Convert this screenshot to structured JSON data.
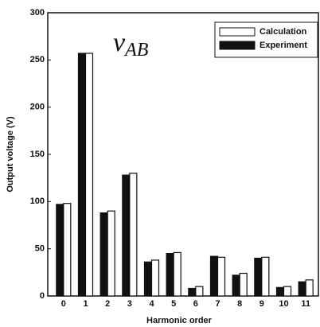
{
  "chart_data": {
    "type": "bar",
    "annotation": "v",
    "annotation_subscript": "AB",
    "x_label": "Harmonic order",
    "y_label": "Output voltage (V)",
    "categories": [
      "0",
      "1",
      "2",
      "3",
      "4",
      "5",
      "6",
      "7",
      "8",
      "9",
      "10",
      "11"
    ],
    "series": [
      {
        "name": "Experiment",
        "color": "#111111",
        "values": [
          97,
          257,
          88,
          128,
          36,
          45,
          8,
          42,
          22,
          40,
          9,
          15
        ]
      },
      {
        "name": "Calculation",
        "color": "#ffffff",
        "values": [
          98,
          257,
          90,
          130,
          38,
          46,
          10,
          41,
          24,
          41,
          10,
          17
        ]
      }
    ],
    "ylim": [
      0,
      300
    ],
    "yticks": [
      0,
      50,
      100,
      150,
      200,
      250,
      300
    ],
    "grid": false,
    "legend": "top-right"
  }
}
